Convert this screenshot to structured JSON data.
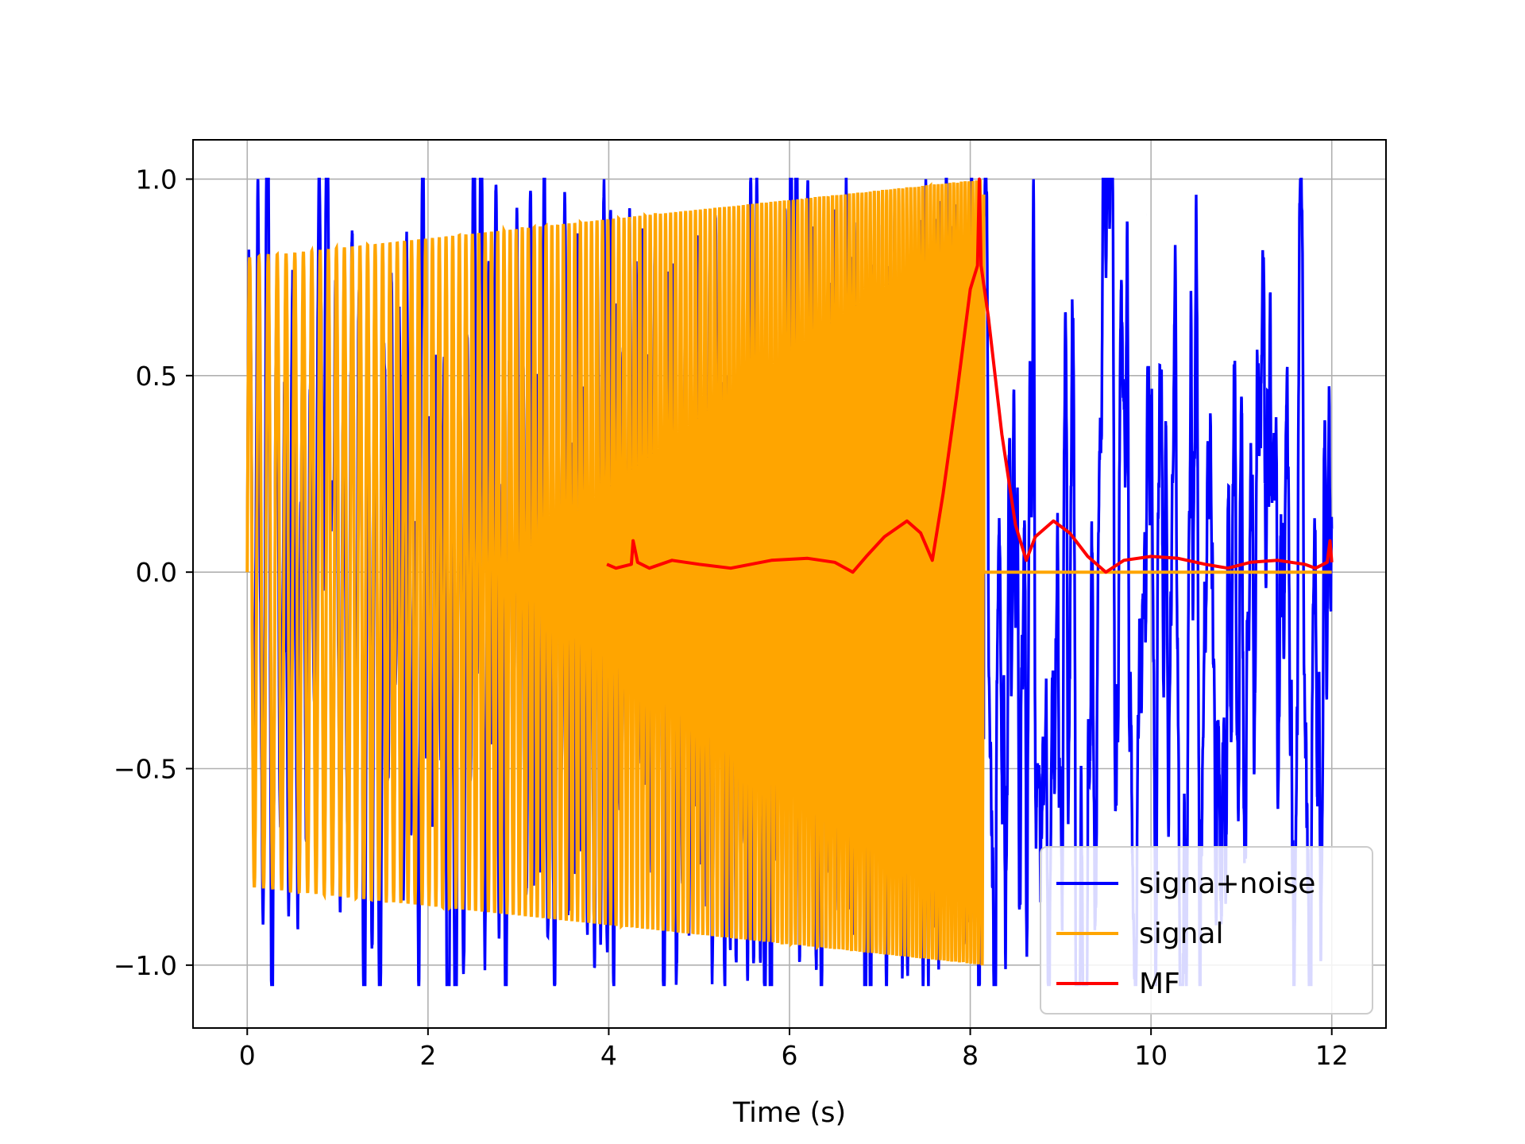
{
  "chart_data": {
    "type": "line",
    "title": "",
    "xlabel": "Time (s)",
    "ylabel": "",
    "xlim": [
      -0.6,
      12.6
    ],
    "ylim": [
      -1.16,
      1.1
    ],
    "xticks": [
      0,
      2,
      4,
      6,
      8,
      10,
      12
    ],
    "xtick_labels": [
      "0",
      "2",
      "4",
      "6",
      "8",
      "10",
      "12"
    ],
    "yticks": [
      1.0,
      0.5,
      0.0,
      -0.5,
      -1.0
    ],
    "ytick_labels": [
      "1.0",
      "0.5",
      "0.0",
      "−0.5",
      "−1.0"
    ],
    "grid": true,
    "legend_position": "lower-right",
    "series": [
      {
        "name": "signa+noise",
        "color": "#0000ff",
        "description": "noisy oscillation over 0-12 s, amplitude about 0.8-1.0",
        "x": [
          0,
          0.02,
          0.55,
          0.58,
          1.0,
          1.05,
          1.25,
          3.95,
          4.25,
          4.05,
          6.6,
          7.1,
          7.6,
          8.05,
          8.35,
          8.6,
          9.95,
          10.05,
          11.3,
          12.0
        ],
        "y": [
          -0.22,
          0.8,
          0.68,
          -0.96,
          1.0,
          -0.91,
          0.84,
          0.91,
          0.9,
          -1.02,
          0.55,
          -1.05,
          -1.03,
          -1.05,
          -0.87,
          -0.45,
          0.91,
          -0.78,
          -0.72,
          0.36
        ]
      },
      {
        "name": "signal",
        "color": "#ffa500",
        "description": "chirp from t=0 to t=8.15 s, envelope rising from 0.8 to 1.0, then zero until 12 s",
        "x": [
          0.0,
          8.15,
          8.15,
          12.0
        ],
        "y": [
          0.8,
          1.0,
          0.0,
          0.0
        ]
      },
      {
        "name": "MF",
        "color": "#ff0000",
        "description": "matched-filter output from t=4 to t=12 s, peak near t=8.1",
        "x": [
          3.98,
          4.08,
          4.25,
          4.27,
          4.32,
          4.45,
          4.7,
          5.0,
          5.35,
          5.8,
          6.2,
          6.5,
          6.7,
          6.85,
          7.05,
          7.3,
          7.45,
          7.58,
          7.7,
          7.85,
          8.0,
          8.08,
          8.1,
          8.12,
          8.2,
          8.35,
          8.5,
          8.62,
          8.72,
          8.92,
          9.1,
          9.3,
          9.5,
          9.7,
          10.0,
          10.3,
          10.6,
          10.85,
          11.1,
          11.4,
          11.7,
          11.82,
          11.95,
          11.98,
          12.0
        ],
        "y": [
          0.02,
          0.01,
          0.02,
          0.08,
          0.025,
          0.01,
          0.03,
          0.02,
          0.01,
          0.03,
          0.035,
          0.025,
          0.0,
          0.04,
          0.09,
          0.13,
          0.1,
          0.03,
          0.2,
          0.45,
          0.72,
          0.78,
          1.0,
          0.78,
          0.65,
          0.35,
          0.12,
          0.03,
          0.09,
          0.13,
          0.1,
          0.04,
          0.0,
          0.03,
          0.04,
          0.035,
          0.02,
          0.01,
          0.025,
          0.03,
          0.02,
          0.01,
          0.025,
          0.08,
          0.025
        ]
      }
    ]
  }
}
